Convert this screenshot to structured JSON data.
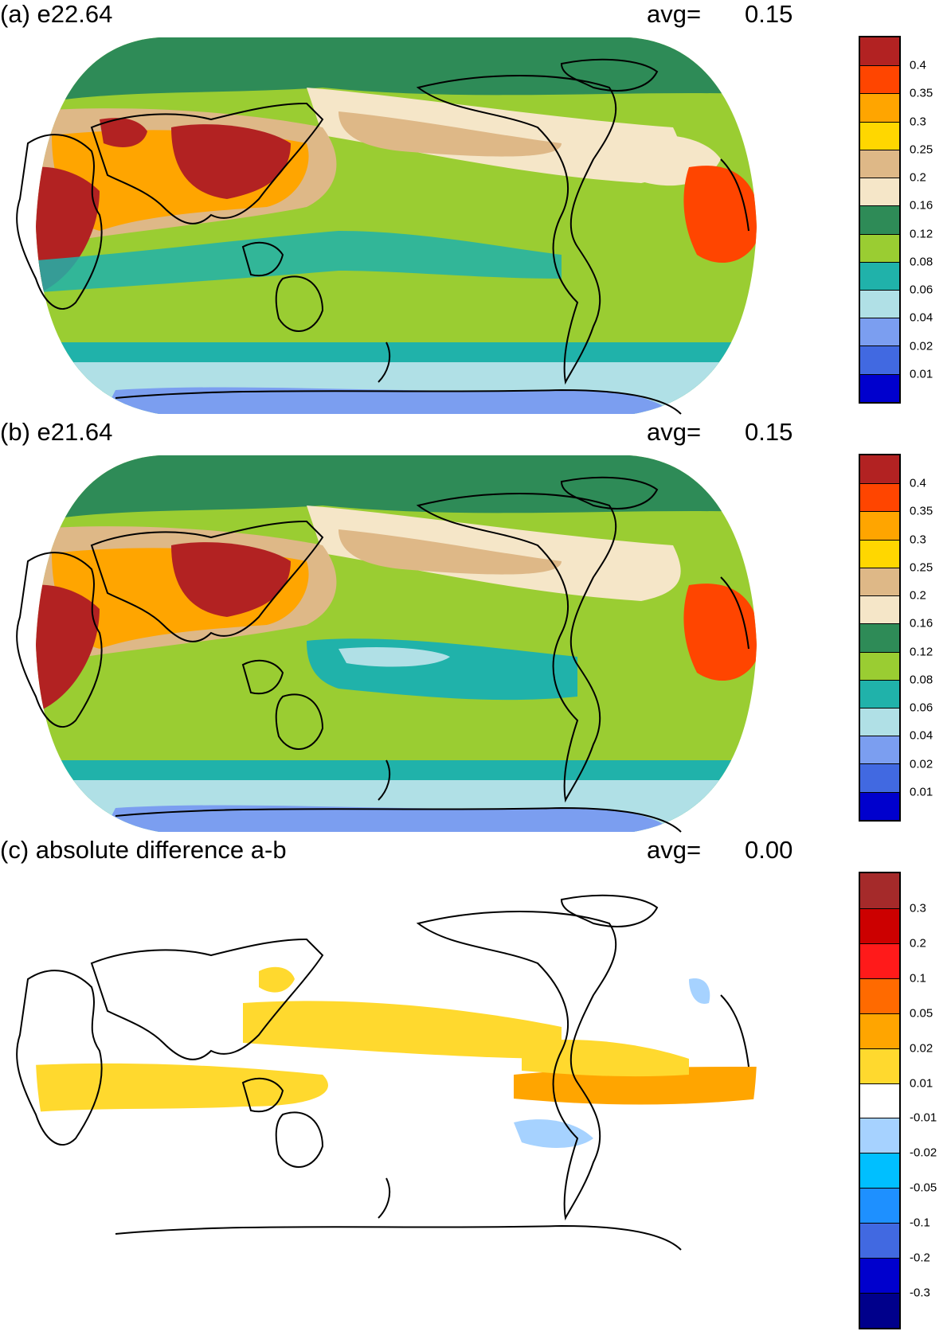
{
  "panels": [
    {
      "id": "a",
      "title": "(a) e22.64",
      "avg_label": "avg=",
      "avg_value": "0.15",
      "legend": {
        "colors": [
          "#b22222",
          "#ff4500",
          "#ffa500",
          "#ffd700",
          "#deb887",
          "#f5e6c8",
          "#2e8b57",
          "#9acd32",
          "#20b2aa",
          "#b0e0e6",
          "#7b9ef0",
          "#4169e1",
          "#0000cd"
        ],
        "labels": [
          "0.4",
          "0.35",
          "0.3",
          "0.25",
          "0.2",
          "0.16",
          "0.12",
          "0.08",
          "0.06",
          "0.04",
          "0.02",
          "0.01"
        ]
      }
    },
    {
      "id": "b",
      "title": "(b) e21.64",
      "avg_label": "avg=",
      "avg_value": "0.15",
      "legend": {
        "colors": [
          "#b22222",
          "#ff4500",
          "#ffa500",
          "#ffd700",
          "#deb887",
          "#f5e6c8",
          "#2e8b57",
          "#9acd32",
          "#20b2aa",
          "#b0e0e6",
          "#7b9ef0",
          "#4169e1",
          "#0000cd"
        ],
        "labels": [
          "0.4",
          "0.35",
          "0.3",
          "0.25",
          "0.2",
          "0.16",
          "0.12",
          "0.08",
          "0.06",
          "0.04",
          "0.02",
          "0.01"
        ]
      }
    },
    {
      "id": "c",
      "title": "(c) absolute difference a-b",
      "avg_label": "avg=",
      "avg_value": "0.00",
      "legend": {
        "colors": [
          "#a52a2a",
          "#cc0000",
          "#ff1a1a",
          "#ff6a00",
          "#ffa500",
          "#ffd92e",
          "#ffffff",
          "#a6d2ff",
          "#00bfff",
          "#1e90ff",
          "#4169e1",
          "#0000cd",
          "#00008b"
        ],
        "labels": [
          "0.3",
          "0.2",
          "0.1",
          "0.05",
          "0.02",
          "0.01",
          "-0.01",
          "-0.02",
          "-0.05",
          "-0.1",
          "-0.2",
          "-0.3"
        ]
      }
    }
  ]
}
